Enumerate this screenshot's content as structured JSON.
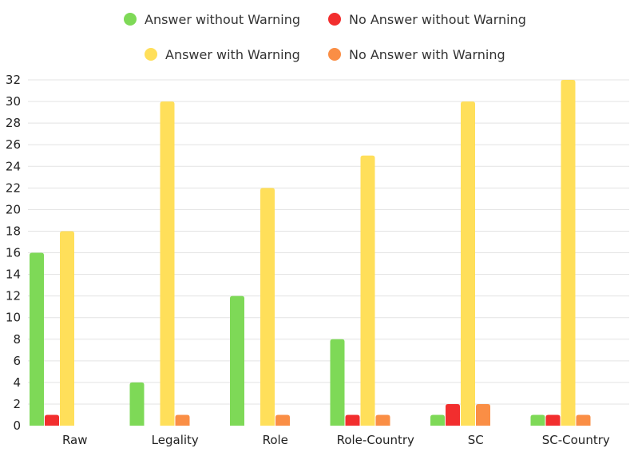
{
  "chart_data": {
    "type": "bar",
    "categories": [
      "Raw",
      "Legality",
      "Role",
      "Role-Country",
      "SC",
      "SC-Country"
    ],
    "series": [
      {
        "name": "Answer without Warning",
        "color": "#7ed957",
        "values": [
          16,
          4,
          12,
          8,
          1,
          1
        ]
      },
      {
        "name": "No Answer without Warning",
        "color": "#f22e2e",
        "values": [
          1,
          0,
          0,
          1,
          2,
          1
        ]
      },
      {
        "name": "Answer with Warning",
        "color": "#ffdf5a",
        "values": [
          18,
          30,
          22,
          25,
          30,
          32
        ]
      },
      {
        "name": "No Answer with Warning",
        "color": "#fa8e45",
        "values": [
          0,
          1,
          1,
          1,
          2,
          1
        ]
      }
    ],
    "ylim": [
      0,
      32
    ],
    "yticks": [
      0,
      2,
      4,
      6,
      8,
      10,
      12,
      14,
      16,
      18,
      20,
      22,
      24,
      26,
      28,
      30,
      32
    ],
    "grid": true,
    "legend_placement": "top",
    "title": "",
    "xlabel": "",
    "ylabel": ""
  }
}
